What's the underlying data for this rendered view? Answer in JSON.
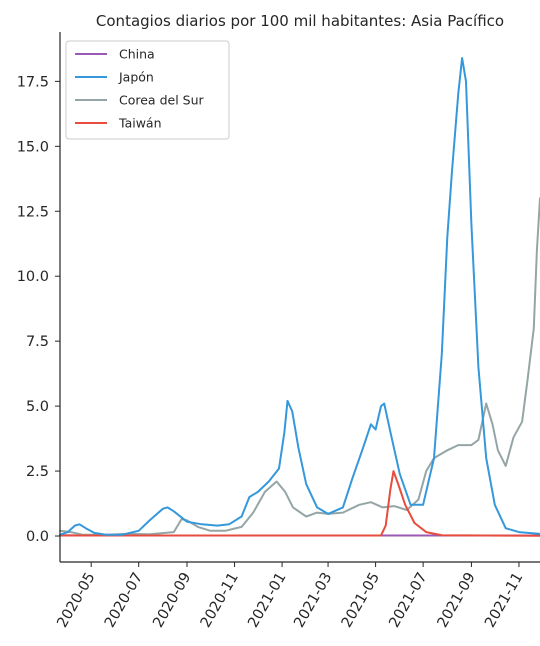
{
  "chart_data": {
    "type": "line",
    "title": "Contagios diarios por 100 mil habitantes: Asia Pacífico",
    "xlabel": "",
    "ylabel": "",
    "x_tick_labels": [
      "2020-05",
      "2020-07",
      "2020-09",
      "2020-11",
      "2021-01",
      "2021-03",
      "2021-05",
      "2021-07",
      "2021-09",
      "2021-11"
    ],
    "x_tick_dates": [
      "2020-05-01",
      "2020-07-01",
      "2020-09-01",
      "2020-11-01",
      "2021-01-01",
      "2021-03-01",
      "2021-05-01",
      "2021-07-01",
      "2021-09-01",
      "2021-11-01"
    ],
    "xlim": [
      "2020-03-22",
      "2021-11-28"
    ],
    "y_ticks": [
      "0.0",
      "2.5",
      "5.0",
      "7.5",
      "10.0",
      "12.5",
      "15.0",
      "17.5"
    ],
    "y_tick_values": [
      0,
      2.5,
      5,
      7.5,
      10,
      12.5,
      15,
      17.5
    ],
    "ylim": [
      -1.0,
      19.4
    ],
    "grid": false,
    "legend_position": "top-left",
    "series": [
      {
        "name": "China",
        "color": "#9b59b6",
        "points": [
          [
            "2020-03-22",
            0.03
          ],
          [
            "2020-05-01",
            0.02
          ],
          [
            "2020-09-01",
            0.02
          ],
          [
            "2021-01-01",
            0.02
          ],
          [
            "2021-05-01",
            0.02
          ],
          [
            "2021-09-01",
            0.02
          ],
          [
            "2021-11-28",
            0.02
          ]
        ]
      },
      {
        "name": "Japón",
        "color": "#3498db",
        "points": [
          [
            "2020-03-22",
            0.05
          ],
          [
            "2020-04-01",
            0.15
          ],
          [
            "2020-04-10",
            0.4
          ],
          [
            "2020-04-16",
            0.45
          ],
          [
            "2020-04-24",
            0.3
          ],
          [
            "2020-05-05",
            0.12
          ],
          [
            "2020-05-20",
            0.05
          ],
          [
            "2020-06-10",
            0.05
          ],
          [
            "2020-07-01",
            0.2
          ],
          [
            "2020-07-15",
            0.6
          ],
          [
            "2020-08-01",
            1.05
          ],
          [
            "2020-08-07",
            1.1
          ],
          [
            "2020-08-15",
            0.95
          ],
          [
            "2020-09-01",
            0.55
          ],
          [
            "2020-09-20",
            0.45
          ],
          [
            "2020-10-10",
            0.4
          ],
          [
            "2020-10-25",
            0.45
          ],
          [
            "2020-11-10",
            0.75
          ],
          [
            "2020-11-20",
            1.5
          ],
          [
            "2020-12-01",
            1.7
          ],
          [
            "2020-12-15",
            2.1
          ],
          [
            "2020-12-28",
            2.6
          ],
          [
            "2021-01-04",
            4.0
          ],
          [
            "2021-01-08",
            5.2
          ],
          [
            "2021-01-14",
            4.8
          ],
          [
            "2021-01-22",
            3.4
          ],
          [
            "2021-02-01",
            2.0
          ],
          [
            "2021-02-15",
            1.1
          ],
          [
            "2021-03-01",
            0.85
          ],
          [
            "2021-03-20",
            1.1
          ],
          [
            "2021-04-01",
            2.2
          ],
          [
            "2021-04-15",
            3.4
          ],
          [
            "2021-04-25",
            4.3
          ],
          [
            "2021-05-01",
            4.1
          ],
          [
            "2021-05-08",
            5.0
          ],
          [
            "2021-05-12",
            5.1
          ],
          [
            "2021-05-20",
            4.0
          ],
          [
            "2021-06-01",
            2.4
          ],
          [
            "2021-06-15",
            1.2
          ],
          [
            "2021-07-01",
            1.2
          ],
          [
            "2021-07-15",
            3.0
          ],
          [
            "2021-07-25",
            7.0
          ],
          [
            "2021-08-01",
            11.5
          ],
          [
            "2021-08-07",
            14.0
          ],
          [
            "2021-08-15",
            17.0
          ],
          [
            "2021-08-20",
            18.4
          ],
          [
            "2021-08-25",
            17.5
          ],
          [
            "2021-09-01",
            12.0
          ],
          [
            "2021-09-10",
            6.5
          ],
          [
            "2021-09-20",
            3.0
          ],
          [
            "2021-10-01",
            1.2
          ],
          [
            "2021-10-15",
            0.3
          ],
          [
            "2021-11-01",
            0.15
          ],
          [
            "2021-11-28",
            0.08
          ]
        ]
      },
      {
        "name": "Corea del Sur",
        "color": "#95a5a6",
        "points": [
          [
            "2020-03-22",
            0.2
          ],
          [
            "2020-04-05",
            0.15
          ],
          [
            "2020-04-20",
            0.05
          ],
          [
            "2020-05-20",
            0.05
          ],
          [
            "2020-06-15",
            0.08
          ],
          [
            "2020-07-15",
            0.07
          ],
          [
            "2020-08-15",
            0.15
          ],
          [
            "2020-08-25",
            0.65
          ],
          [
            "2020-09-01",
            0.6
          ],
          [
            "2020-09-15",
            0.35
          ],
          [
            "2020-10-01",
            0.2
          ],
          [
            "2020-10-20",
            0.2
          ],
          [
            "2020-11-10",
            0.35
          ],
          [
            "2020-11-25",
            0.9
          ],
          [
            "2020-12-10",
            1.7
          ],
          [
            "2020-12-25",
            2.1
          ],
          [
            "2021-01-05",
            1.7
          ],
          [
            "2021-01-15",
            1.1
          ],
          [
            "2021-02-01",
            0.75
          ],
          [
            "2021-02-15",
            0.9
          ],
          [
            "2021-03-01",
            0.85
          ],
          [
            "2021-03-20",
            0.9
          ],
          [
            "2021-04-10",
            1.2
          ],
          [
            "2021-04-25",
            1.3
          ],
          [
            "2021-05-10",
            1.1
          ],
          [
            "2021-05-25",
            1.15
          ],
          [
            "2021-06-10",
            1.0
          ],
          [
            "2021-06-25",
            1.4
          ],
          [
            "2021-07-05",
            2.5
          ],
          [
            "2021-07-15",
            3.0
          ],
          [
            "2021-08-01",
            3.3
          ],
          [
            "2021-08-15",
            3.5
          ],
          [
            "2021-09-01",
            3.5
          ],
          [
            "2021-09-10",
            3.7
          ],
          [
            "2021-09-20",
            5.1
          ],
          [
            "2021-09-28",
            4.3
          ],
          [
            "2021-10-05",
            3.3
          ],
          [
            "2021-10-15",
            2.7
          ],
          [
            "2021-10-25",
            3.8
          ],
          [
            "2021-11-05",
            4.4
          ],
          [
            "2021-11-12",
            6.0
          ],
          [
            "2021-11-20",
            8.0
          ],
          [
            "2021-11-24",
            11.0
          ],
          [
            "2021-11-28",
            13.0
          ]
        ]
      },
      {
        "name": "Taiwán",
        "color": "#e74c3c",
        "points": [
          [
            "2020-03-22",
            0.02
          ],
          [
            "2021-05-08",
            0.02
          ],
          [
            "2021-05-14",
            0.4
          ],
          [
            "2021-05-20",
            1.8
          ],
          [
            "2021-05-24",
            2.5
          ],
          [
            "2021-05-30",
            2.0
          ],
          [
            "2021-06-08",
            1.2
          ],
          [
            "2021-06-20",
            0.5
          ],
          [
            "2021-07-05",
            0.15
          ],
          [
            "2021-07-25",
            0.03
          ],
          [
            "2021-11-28",
            0.01
          ]
        ]
      }
    ]
  }
}
